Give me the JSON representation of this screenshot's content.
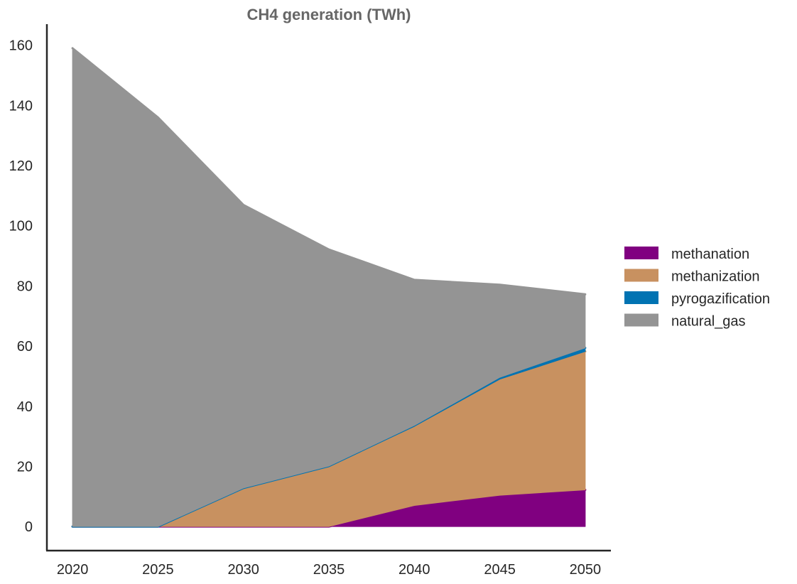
{
  "chart_data": {
    "type": "area",
    "title": "CH4 generation (TWh)",
    "xlabel": "",
    "ylabel": "",
    "x": [
      2020,
      2025,
      2030,
      2035,
      2040,
      2045,
      2050
    ],
    "x_tick_labels": [
      "2020",
      "2025",
      "2030",
      "2035",
      "2040",
      "2045",
      "2050"
    ],
    "y_ticks": [
      0,
      20,
      40,
      60,
      80,
      100,
      120,
      140,
      160
    ],
    "y_tick_labels": [
      "0",
      "20",
      "40",
      "60",
      "80",
      "100",
      "120",
      "140",
      "160"
    ],
    "xlim": [
      2018.5,
      2051.5
    ],
    "ylim": [
      -8,
      167
    ],
    "stacked": true,
    "grid": false,
    "legend_position": "right",
    "series": [
      {
        "name": "methanation",
        "color": "#800080",
        "values": [
          0,
          0,
          0,
          0,
          7,
          10.4,
          12.2
        ]
      },
      {
        "name": "methanization",
        "color": "#c89160",
        "values": [
          0,
          0,
          12.8,
          20.1,
          26.3,
          38.6,
          46.0
        ]
      },
      {
        "name": "pyrogazification",
        "color": "#0173b2",
        "values": [
          0,
          0,
          0,
          0,
          0.3,
          0.6,
          1.2
        ]
      },
      {
        "name": "natural_gas",
        "color": "#949494",
        "values": [
          159,
          136,
          94.1,
          72,
          48.4,
          30.8,
          17.8
        ]
      }
    ]
  }
}
